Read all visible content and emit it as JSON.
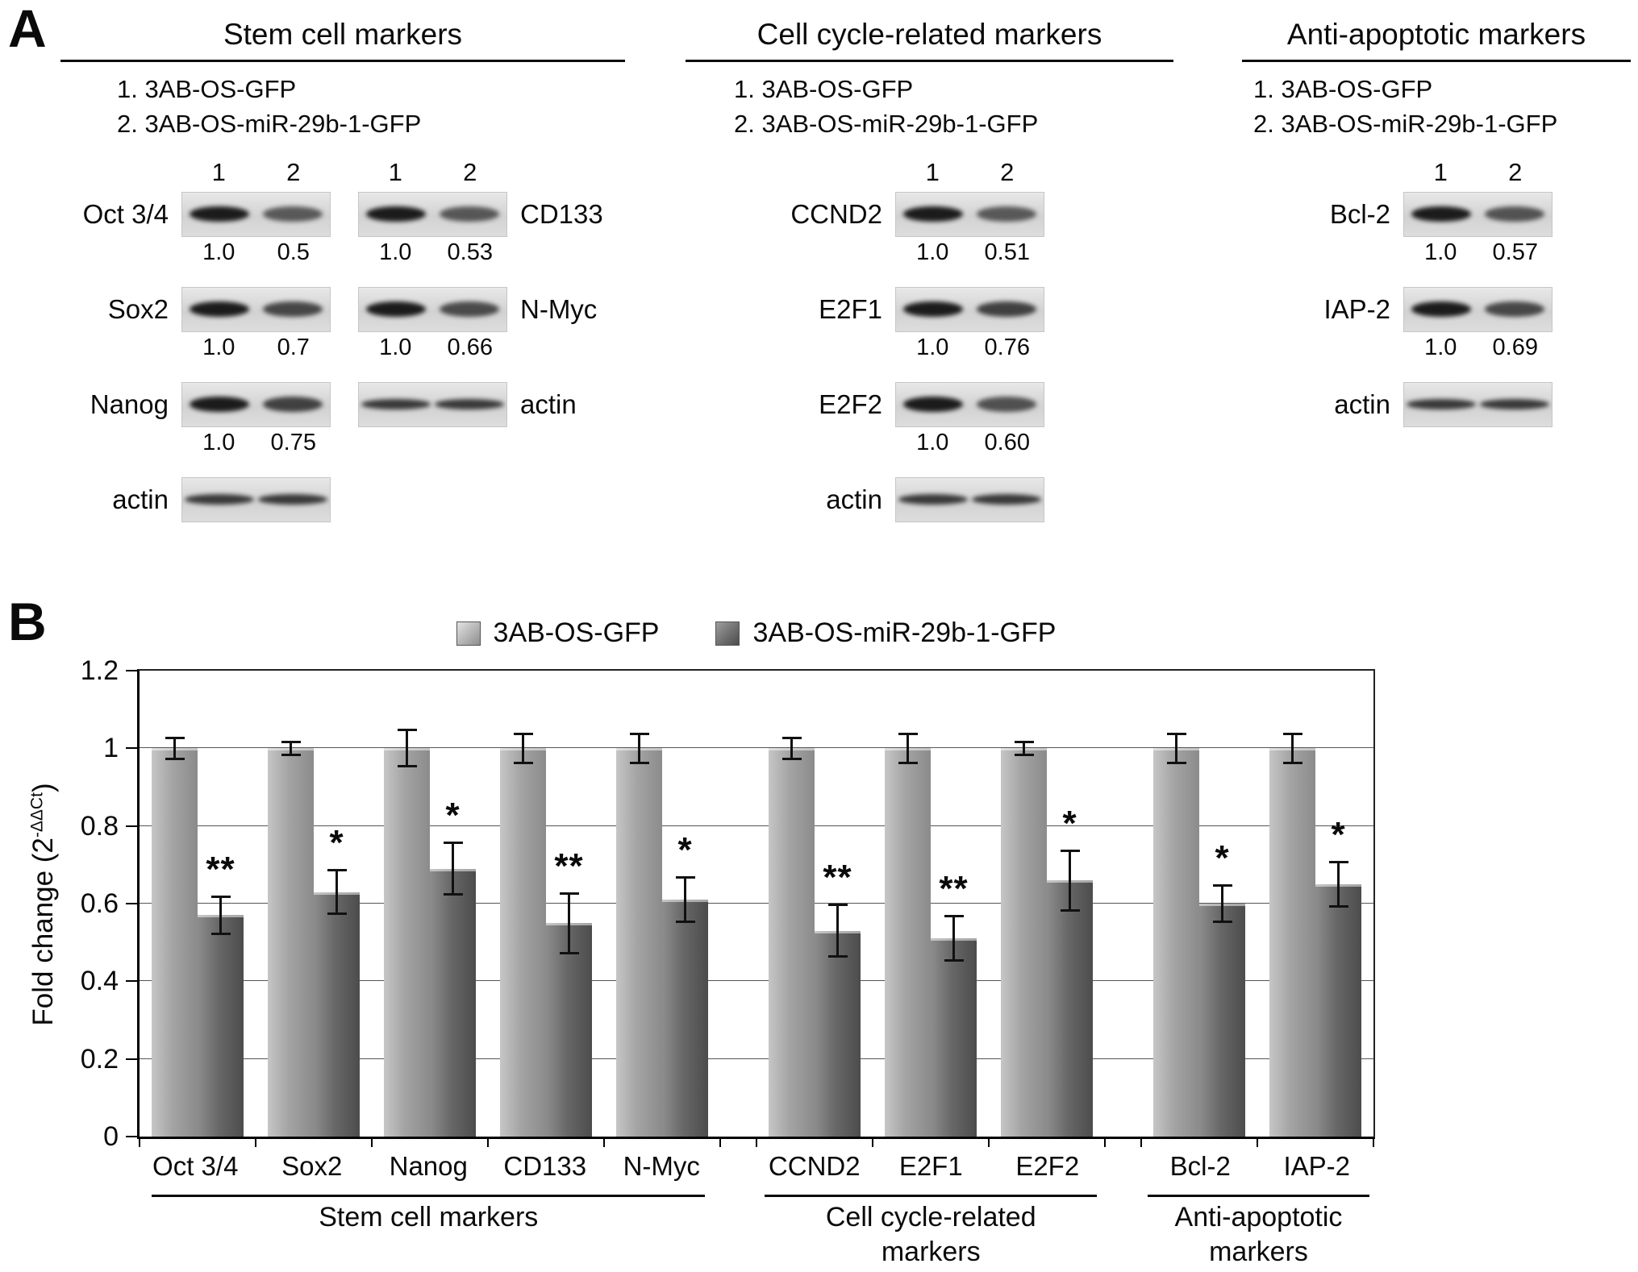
{
  "panelA": {
    "label": "A",
    "groups": [
      {
        "title": "Stem cell markers",
        "legend": [
          "1. 3AB-OS-GFP",
          "2. 3AB-OS-miR-29b-1-GFP"
        ],
        "columns": [
          {
            "lane_numbers": [
              "1",
              "2"
            ],
            "label_side": "left",
            "rows": [
              {
                "label": "Oct 3/4",
                "values": [
                  "1.0",
                  "0.5"
                ]
              },
              {
                "label": "Sox2",
                "values": [
                  "1.0",
                  "0.7"
                ]
              },
              {
                "label": "Nanog",
                "values": [
                  "1.0",
                  "0.75"
                ]
              },
              {
                "label": "actin",
                "values": []
              }
            ]
          },
          {
            "lane_numbers": [
              "1",
              "2"
            ],
            "label_side": "right",
            "rows": [
              {
                "label": "CD133",
                "values": [
                  "1.0",
                  "0.53"
                ]
              },
              {
                "label": "N-Myc",
                "values": [
                  "1.0",
                  "0.66"
                ]
              },
              {
                "label": "actin",
                "values": []
              }
            ]
          }
        ]
      },
      {
        "title": "Cell cycle-related markers",
        "legend": [
          "1. 3AB-OS-GFP",
          "2. 3AB-OS-miR-29b-1-GFP"
        ],
        "columns": [
          {
            "lane_numbers": [
              "1",
              "2"
            ],
            "label_side": "left",
            "rows": [
              {
                "label": "CCND2",
                "values": [
                  "1.0",
                  "0.51"
                ]
              },
              {
                "label": "E2F1",
                "values": [
                  "1.0",
                  "0.76"
                ]
              },
              {
                "label": "E2F2",
                "values": [
                  "1.0",
                  "0.60"
                ]
              },
              {
                "label": "actin",
                "values": []
              }
            ]
          }
        ]
      },
      {
        "title": "Anti-apoptotic markers",
        "legend": [
          "1. 3AB-OS-GFP",
          "2. 3AB-OS-miR-29b-1-GFP"
        ],
        "columns": [
          {
            "lane_numbers": [
              "1",
              "2"
            ],
            "label_side": "left",
            "rows": [
              {
                "label": "Bcl-2",
                "values": [
                  "1.0",
                  "0.57"
                ]
              },
              {
                "label": "IAP-2",
                "values": [
                  "1.0",
                  "0.69"
                ]
              },
              {
                "label": "actin",
                "values": []
              }
            ]
          }
        ]
      }
    ]
  },
  "panelB": {
    "label": "B"
  },
  "chart_data": {
    "type": "bar",
    "title": "",
    "ylabel": "Fold change (2-ΔΔCt)",
    "ylabel_parts": {
      "base": "Fold change (2",
      "sup": "-ΔΔCt",
      "close": ")"
    },
    "ylim": [
      0,
      1.2
    ],
    "yticks": [
      0,
      0.2,
      0.4,
      0.6,
      0.8,
      1,
      1.2
    ],
    "ytick_labels": [
      "0",
      "0.2",
      "0.4",
      "0.6",
      "0.8",
      "1",
      "1.2"
    ],
    "grid": true,
    "legend_position": "top",
    "categories": [
      "Oct 3/4",
      "Sox2",
      "Nanog",
      "CD133",
      "N-Myc",
      "CCND2",
      "E2F1",
      "E2F2",
      "Bcl-2",
      "IAP-2"
    ],
    "series": [
      {
        "name": "3AB-OS-GFP",
        "color": "#a8a8a8",
        "values": [
          1.0,
          1.0,
          1.0,
          1.0,
          1.0,
          1.0,
          1.0,
          1.0,
          1.0,
          1.0
        ],
        "errors": [
          0.03,
          0.02,
          0.05,
          0.04,
          0.04,
          0.03,
          0.04,
          0.02,
          0.04,
          0.04
        ]
      },
      {
        "name": "3AB-OS-miR-29b-1-GFP",
        "color": "#6d6d6d",
        "values": [
          0.57,
          0.63,
          0.69,
          0.55,
          0.61,
          0.53,
          0.51,
          0.66,
          0.6,
          0.65
        ],
        "errors": [
          0.05,
          0.06,
          0.07,
          0.08,
          0.06,
          0.07,
          0.06,
          0.08,
          0.05,
          0.06
        ]
      }
    ],
    "significance": [
      "**",
      "*",
      "*",
      "**",
      "*",
      "**",
      "**",
      "*",
      "*",
      "*"
    ],
    "groups": [
      {
        "label": "Stem cell markers",
        "label_lines": [
          "Stem cell markers"
        ],
        "categories": [
          "Oct 3/4",
          "Sox2",
          "Nanog",
          "CD133",
          "N-Myc"
        ]
      },
      {
        "label": "Cell cycle-related markers",
        "label_lines": [
          "Cell cycle-related",
          "markers"
        ],
        "categories": [
          "CCND2",
          "E2F1",
          "E2F2"
        ]
      },
      {
        "label": "Anti-apoptotic markers",
        "label_lines": [
          "Anti-apoptotic",
          "markers"
        ],
        "categories": [
          "Bcl-2",
          "IAP-2"
        ]
      }
    ]
  }
}
